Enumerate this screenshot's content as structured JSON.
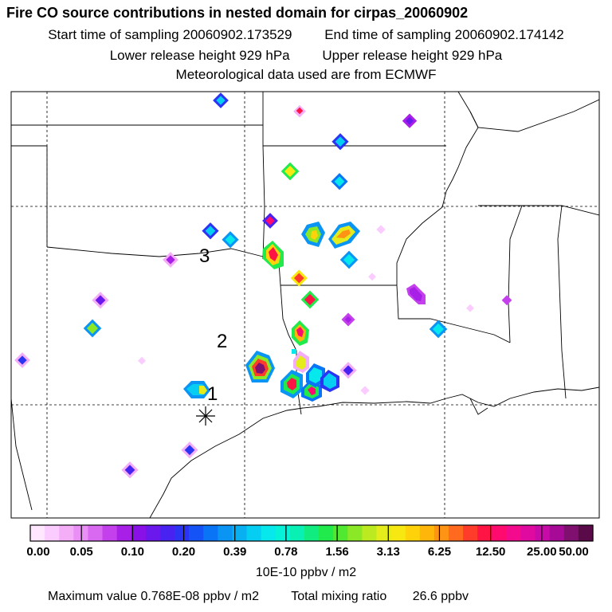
{
  "header": {
    "title": "Fire CO source contributions in nested domain for cirpas_20060902",
    "start_label": "Start time of sampling",
    "start_value": "20060902.173529",
    "end_label": "End time of sampling",
    "end_value": "20060902.174142",
    "lower_label": "Lower release height",
    "lower_value": "929 hPa",
    "upper_label": "Upper release height",
    "upper_value": "929 hPa",
    "met_line": "Meteorological data used are from ECMWF"
  },
  "map": {
    "labels": [
      {
        "text": "1",
        "note": "release point marker"
      },
      {
        "text": "2",
        "note": ""
      },
      {
        "text": "3",
        "note": ""
      }
    ]
  },
  "colorbar": {
    "ticks": [
      "0.00",
      "0.05",
      "0.10",
      "0.20",
      "0.39",
      "0.78",
      "1.56",
      "3.13",
      "6.25",
      "12.50",
      "25.00",
      "50.00"
    ],
    "colors": [
      "#ffe8ff",
      "#fbccff",
      "#f4aef8",
      "#ea8ff5",
      "#d869f0",
      "#c440ec",
      "#a820e8",
      "#8a10e8",
      "#6a18ec",
      "#4822f0",
      "#2c34f4",
      "#1454f6",
      "#0a74f6",
      "#0a94f4",
      "#08b0f2",
      "#06cef2",
      "#06e8ec",
      "#06f2d8",
      "#08f0b4",
      "#10ec80",
      "#20ea4c",
      "#50e830",
      "#8ae826",
      "#bcea20",
      "#e4ec1c",
      "#f8e812",
      "#ffd20a",
      "#ffb60a",
      "#ff9414",
      "#ff6a1e",
      "#ff3c2a",
      "#ff1444",
      "#ff0a6e",
      "#f40a8c",
      "#e00aa0",
      "#c80aa8",
      "#a80a98",
      "#801070",
      "#5a0a48"
    ],
    "units": "10E-10 ppbv / m2"
  },
  "footer": {
    "max_label": "Maximum value",
    "max_value": "0.768E-08 ppbv / m2",
    "total_label": "Total mixing ratio",
    "total_value": "26.6 ppbv"
  }
}
